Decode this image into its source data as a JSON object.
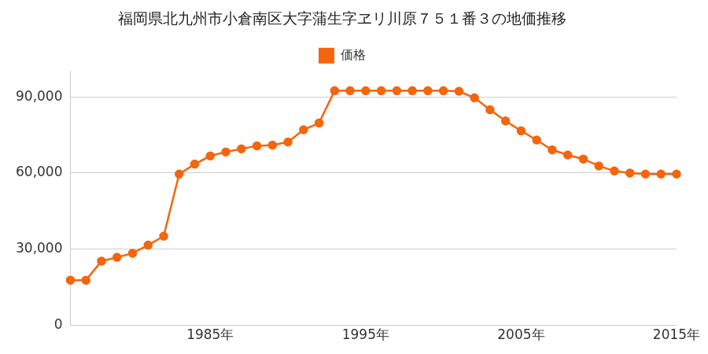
{
  "chart_data": {
    "type": "line",
    "title": "福岡県北九州市小倉南区大字蒲生字ヱリ川原７５１番３の地価推移",
    "x": [
      1976,
      1977,
      1978,
      1979,
      1980,
      1981,
      1982,
      1983,
      1984,
      1985,
      1986,
      1987,
      1988,
      1989,
      1990,
      1991,
      1992,
      1993,
      1994,
      1995,
      1996,
      1997,
      1998,
      1999,
      2000,
      2001,
      2002,
      2003,
      2004,
      2005,
      2006,
      2007,
      2008,
      2009,
      2010,
      2011,
      2012,
      2013,
      2014,
      2015
    ],
    "series": [
      {
        "name": "価格",
        "color": "#f4650d",
        "marker": "circle",
        "values": [
          17800,
          17800,
          25300,
          26800,
          28400,
          31600,
          35100,
          59600,
          63500,
          66700,
          68300,
          69500,
          70700,
          71000,
          72200,
          77000,
          79700,
          92400,
          92400,
          92400,
          92400,
          92400,
          92400,
          92400,
          92400,
          92200,
          89600,
          84900,
          80500,
          76600,
          73000,
          69100,
          67100,
          65500,
          62800,
          60800,
          60000,
          59600,
          59600,
          59600
        ]
      }
    ],
    "xlim": [
      1976,
      2015
    ],
    "xticks": [
      {
        "value": 1985,
        "label": "1985年"
      },
      {
        "value": 1995,
        "label": "1995年"
      },
      {
        "value": 2005,
        "label": "2005年"
      },
      {
        "value": 2015,
        "label": "2015年"
      }
    ],
    "ylim": [
      0,
      100000
    ],
    "yticks": [
      0,
      {
        "value": 30000,
        "label": "30,000"
      },
      {
        "value": 60000,
        "label": "60,000"
      },
      {
        "value": 90000,
        "label": "90,000"
      }
    ],
    "grid": "y",
    "legend": "top"
  }
}
